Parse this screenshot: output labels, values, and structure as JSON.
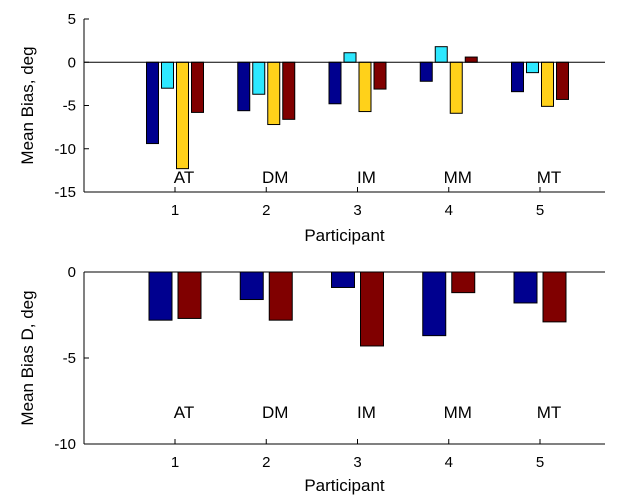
{
  "chart_data": [
    {
      "type": "bar",
      "xlabel": "Participant",
      "ylabel": "Mean Bias, deg",
      "ylim": [
        -15,
        5
      ],
      "yticks": [
        5,
        0,
        -5,
        -10,
        -15
      ],
      "categories": [
        "1",
        "2",
        "3",
        "4",
        "5"
      ],
      "annotations": [
        "AT",
        "DM",
        "IM",
        "MM",
        "MT"
      ],
      "series": [
        {
          "color": "#00008f",
          "values": [
            -9.4,
            -5.6,
            -4.8,
            -2.2,
            -3.4
          ]
        },
        {
          "color": "#2ee8ff",
          "values": [
            -3.0,
            -3.7,
            1.1,
            1.8,
            -1.2
          ]
        },
        {
          "color": "#ffd11a",
          "values": [
            -12.3,
            -7.2,
            -5.7,
            -5.9,
            -5.1
          ]
        },
        {
          "color": "#800000",
          "values": [
            -5.8,
            -6.6,
            -3.1,
            0.6,
            -4.3
          ]
        }
      ]
    },
    {
      "type": "bar",
      "xlabel": "Participant",
      "ylabel": "Mean Bias D, deg",
      "ylim": [
        -10,
        0
      ],
      "yticks": [
        0,
        -5,
        -10
      ],
      "categories": [
        "1",
        "2",
        "3",
        "4",
        "5"
      ],
      "annotations": [
        "AT",
        "DM",
        "IM",
        "MM",
        "MT"
      ],
      "series": [
        {
          "color": "#00008f",
          "values": [
            -2.8,
            -1.6,
            -0.9,
            -3.7,
            -1.8
          ]
        },
        {
          "color": "#800000",
          "values": [
            -2.7,
            -2.8,
            -4.3,
            -1.2,
            -2.9
          ]
        }
      ]
    }
  ]
}
